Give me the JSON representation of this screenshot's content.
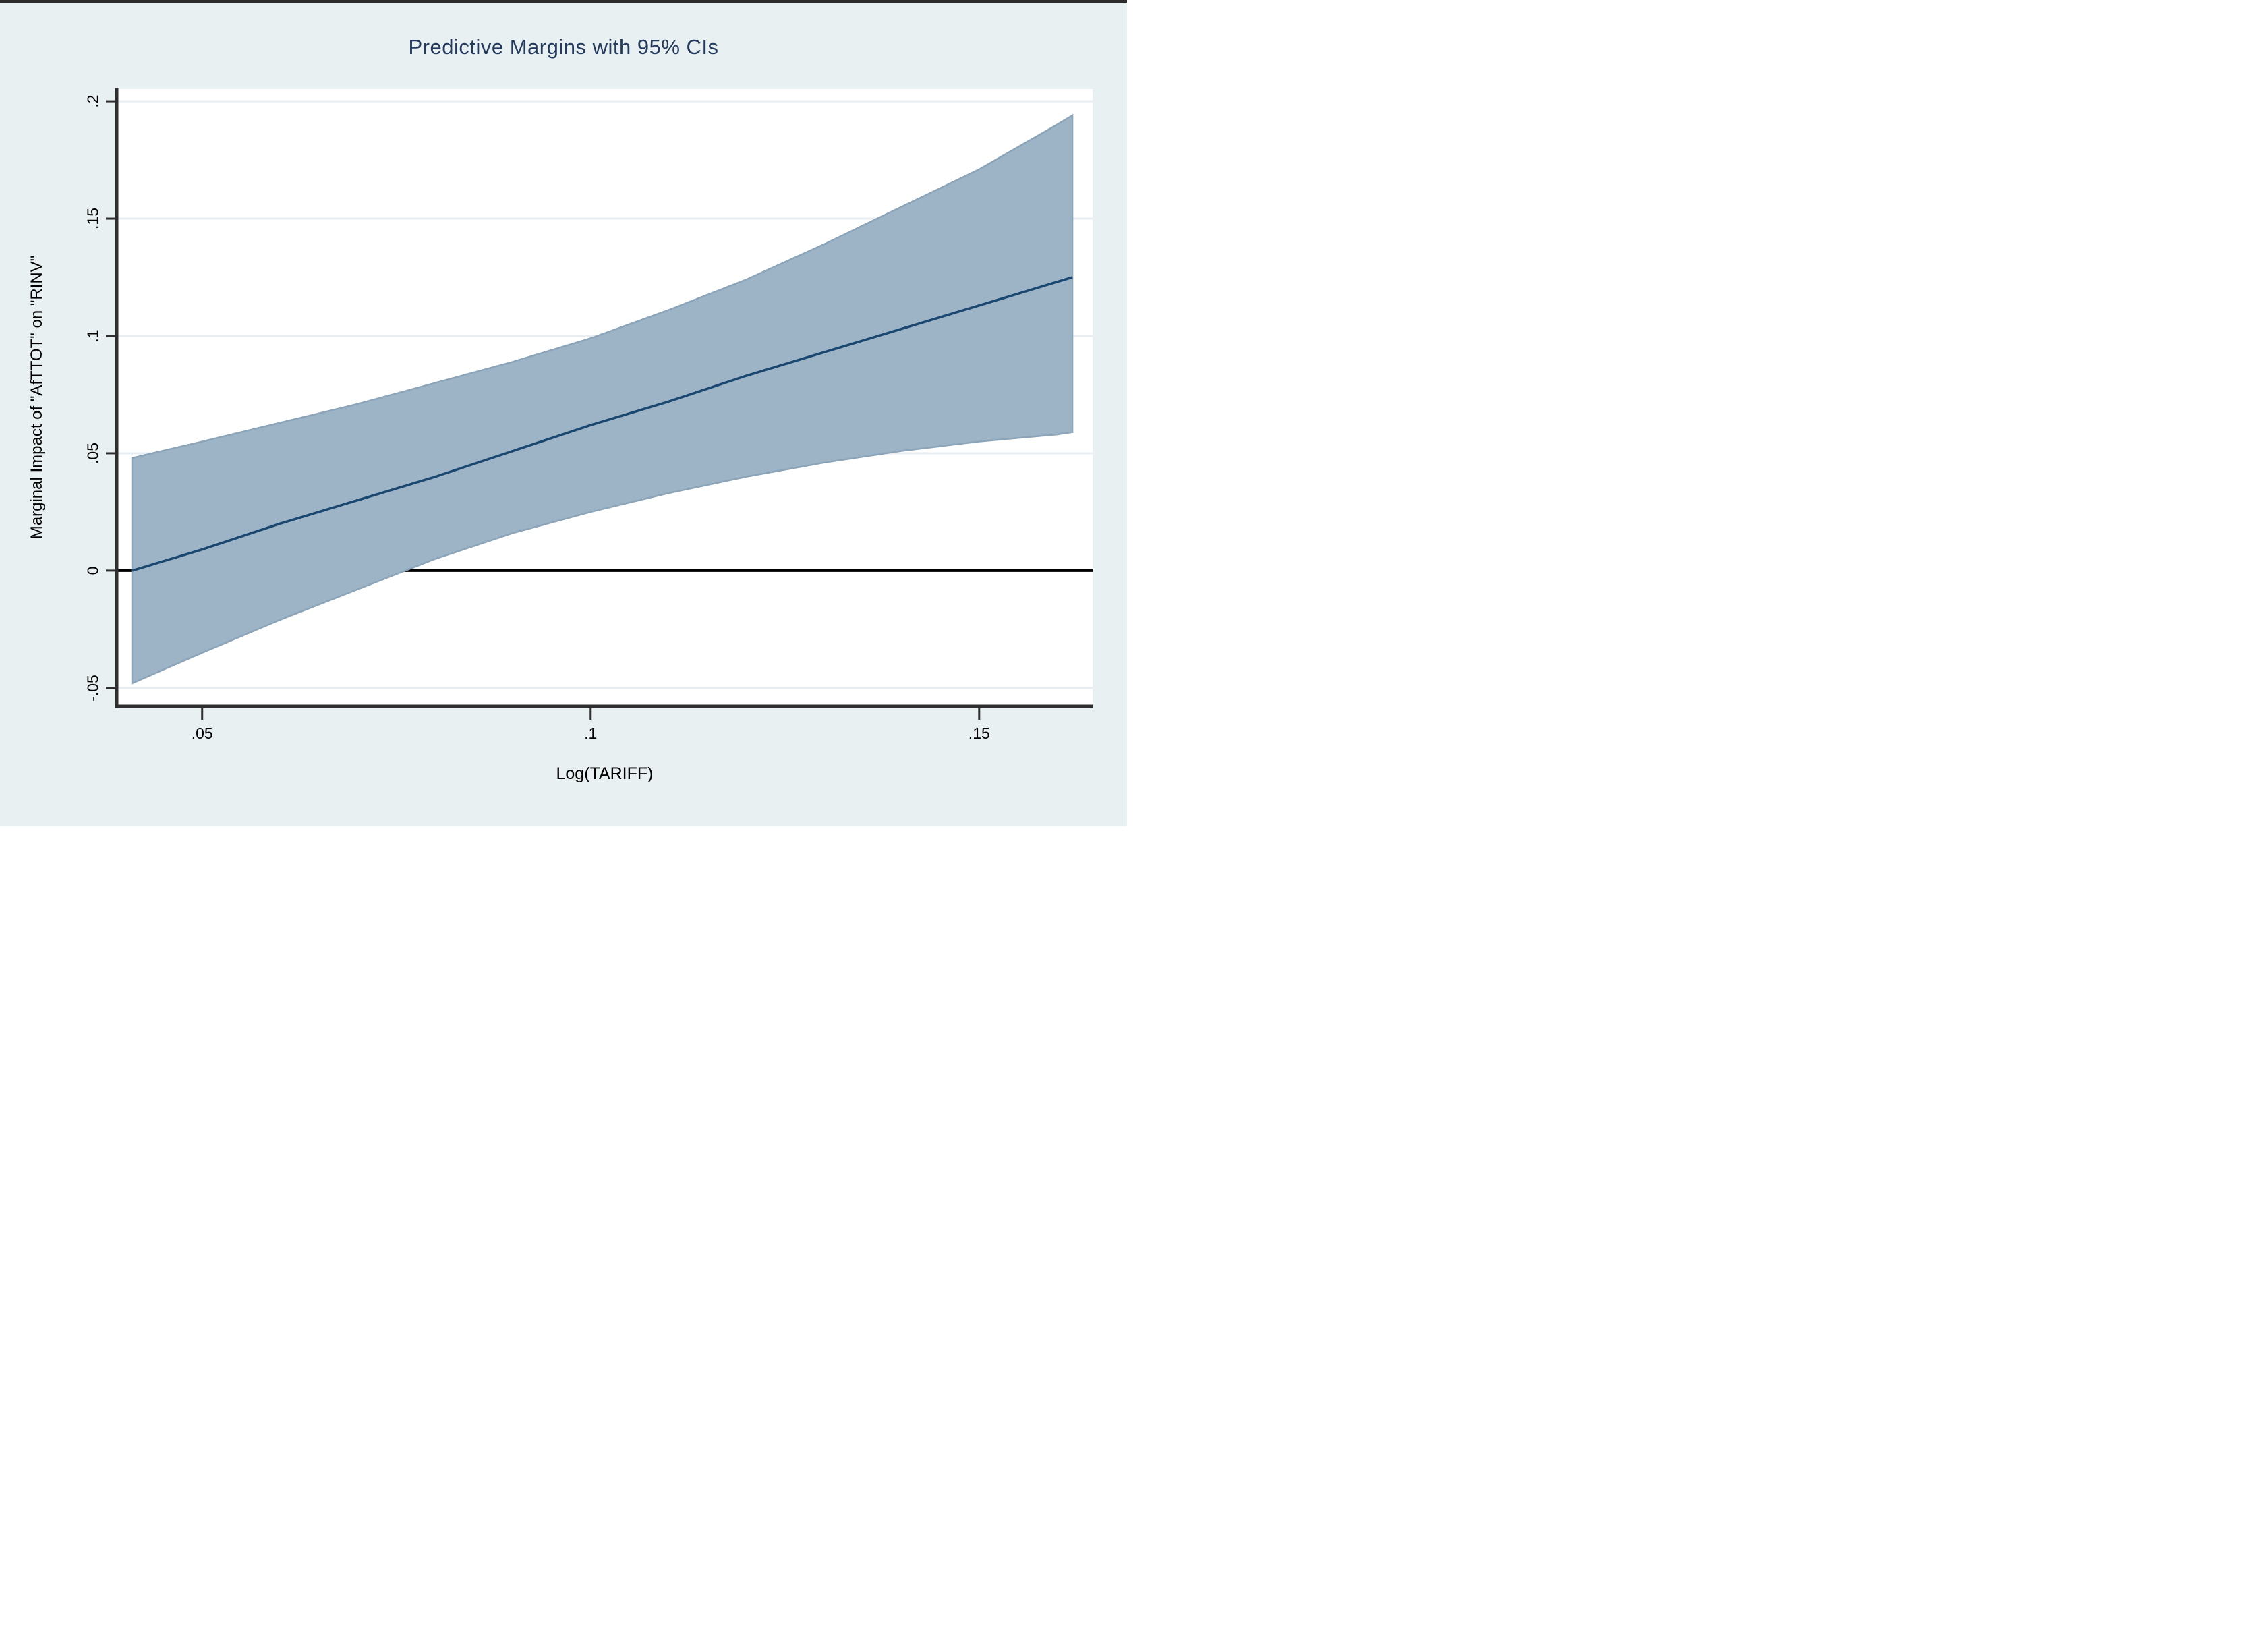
{
  "figure": {
    "title": "Predictive Margins with 95% CIs",
    "x_axis_label": "Log(TARIFF)",
    "y_axis_label": "Marginal Impact of \"AfTTOT\" on \"RINV\""
  },
  "chart_data": {
    "type": "line",
    "title": "Predictive Margins with 95% CIs",
    "xlabel": "Log(TARIFF)",
    "ylabel": "Marginal Impact of \"AfTTOT\" on \"RINV\"",
    "legend_position": "none",
    "grid": "horizontal-only",
    "xlim": [
      0.039,
      0.1646
    ],
    "ylim": [
      -0.0578,
      0.2052
    ],
    "zero_line_y": 0,
    "x_ticks": [
      {
        "value": 0.05,
        "label": ".05"
      },
      {
        "value": 0.1,
        "label": ".1"
      },
      {
        "value": 0.15,
        "label": ".15"
      }
    ],
    "y_ticks": [
      {
        "value": -0.05,
        "label": "-.05"
      },
      {
        "value": 0,
        "label": "0"
      },
      {
        "value": 0.05,
        "label": ".05"
      },
      {
        "value": 0.1,
        "label": ".1"
      },
      {
        "value": 0.15,
        "label": ".15"
      },
      {
        "value": 0.2,
        "label": ".2"
      }
    ],
    "x": [
      0.041,
      0.05,
      0.06,
      0.07,
      0.08,
      0.09,
      0.1,
      0.11,
      0.12,
      0.13,
      0.14,
      0.15,
      0.16,
      0.162
    ],
    "series": [
      {
        "name": "Predictive margin",
        "role": "line",
        "values": [
          0.0,
          0.009,
          0.02,
          0.03,
          0.04,
          0.051,
          0.062,
          0.072,
          0.083,
          0.093,
          0.103,
          0.113,
          0.123,
          0.125
        ]
      },
      {
        "name": "95% CI upper bound",
        "role": "band_upper",
        "values": [
          0.048,
          0.055,
          0.063,
          0.071,
          0.08,
          0.089,
          0.099,
          0.111,
          0.124,
          0.139,
          0.155,
          0.171,
          0.19,
          0.194
        ]
      },
      {
        "name": "95% CI lower bound",
        "role": "band_lower",
        "values": [
          -0.048,
          -0.035,
          -0.021,
          -0.008,
          0.005,
          0.016,
          0.025,
          0.033,
          0.04,
          0.046,
          0.051,
          0.055,
          0.058,
          0.059
        ]
      }
    ],
    "colors": {
      "margin_line": "#1a476f",
      "ci_band_fill": "#9db3c6",
      "ci_band_edge": "#8ba4b8",
      "zero_line": "#000000",
      "grid_line": "#e7edf0",
      "axis": "#2e2e2e",
      "title_text": "#243a5c",
      "tick_text": "#000000",
      "figure_background": "#e8f0f2",
      "plot_background": "#ffffff",
      "top_border": "#2c2c2c"
    }
  }
}
